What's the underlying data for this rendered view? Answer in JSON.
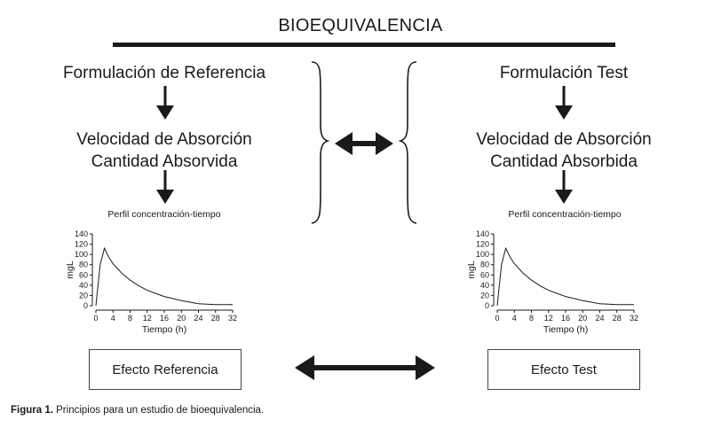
{
  "title": "BIOEQUIVALENCIA",
  "left": {
    "formulation": "Formulación de Referencia",
    "rate": "Velocidad de Absorción",
    "amount": "Cantidad Absorvida",
    "profile_title": "Perfil concentración-tiempo",
    "effect": "Efecto Referencia"
  },
  "right": {
    "formulation": "Formulación Test",
    "rate": "Velocidad de Absorción",
    "amount": "Cantidad Absorbida",
    "profile_title": "Perfil concentración-tiempo",
    "effect": "Efecto Test"
  },
  "caption": {
    "label": "Figura 1.",
    "text": "Principios para un estudio de bioequivalencia."
  },
  "chart_data": [
    {
      "type": "line",
      "ylabel": "mgL",
      "xlabel": "Tiempo (h)",
      "xticks": [
        "0",
        "4",
        "8",
        "12",
        "16",
        "20",
        "24",
        "28",
        "32"
      ],
      "yticks": [
        "0",
        "20",
        "40",
        "60",
        "80",
        "100",
        "120",
        "140"
      ],
      "xlim": [
        0,
        32
      ],
      "ylim": [
        0,
        140
      ],
      "x": [
        0,
        1,
        2,
        3,
        4,
        6,
        8,
        10,
        12,
        14,
        16,
        18,
        20,
        22,
        24,
        26,
        28,
        32
      ],
      "y": [
        0,
        80,
        112,
        95,
        82,
        64,
        50,
        39,
        30,
        24,
        18,
        14,
        10,
        7,
        4,
        3,
        2,
        2
      ]
    },
    {
      "type": "line",
      "ylabel": "mgL",
      "xlabel": "Tiempo (h)",
      "xticks": [
        "0",
        "4",
        "8",
        "12",
        "16",
        "20",
        "24",
        "28",
        "32"
      ],
      "yticks": [
        "0",
        "20",
        "40",
        "60",
        "80",
        "100",
        "120",
        "140"
      ],
      "xlim": [
        0,
        32
      ],
      "ylim": [
        0,
        140
      ],
      "x": [
        0,
        1,
        2,
        3,
        4,
        6,
        8,
        10,
        12,
        14,
        16,
        18,
        20,
        22,
        24,
        26,
        28,
        32
      ],
      "y": [
        0,
        80,
        112,
        95,
        82,
        64,
        50,
        39,
        30,
        24,
        18,
        14,
        10,
        7,
        4,
        3,
        2,
        2
      ]
    }
  ]
}
